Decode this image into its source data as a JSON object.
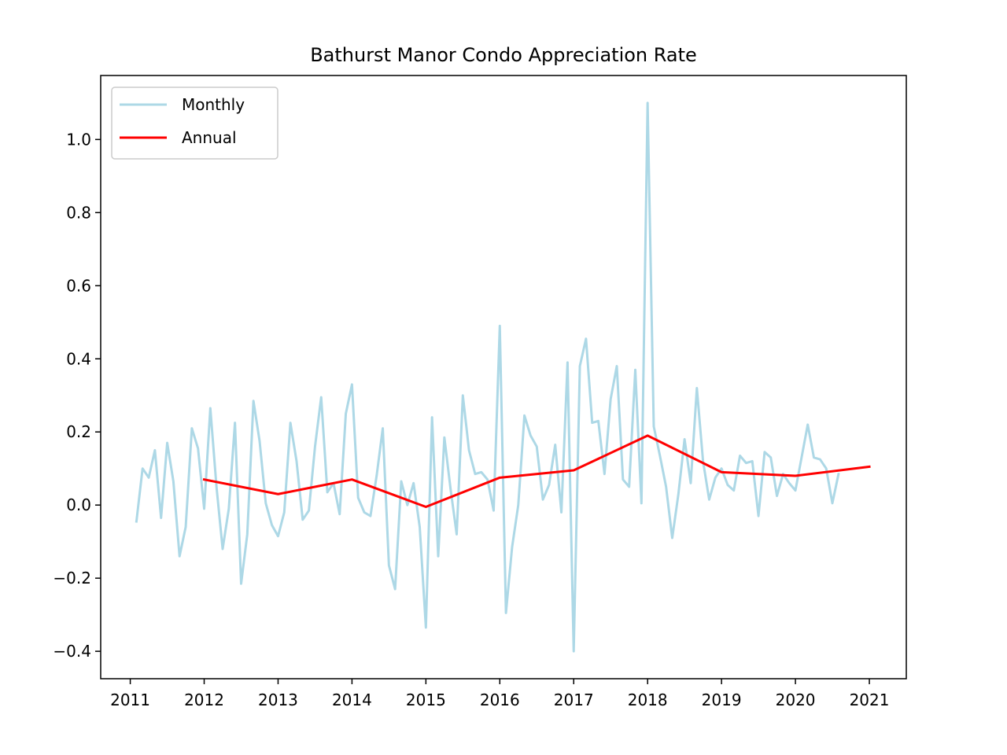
{
  "chart_data": {
    "type": "line",
    "title": "Bathurst Manor Condo Appreciation Rate",
    "xlabel": "",
    "ylabel": "",
    "xlim": [
      2010.6,
      2021.5
    ],
    "ylim": [
      -0.475,
      1.175
    ],
    "x_ticks": [
      2011,
      2012,
      2013,
      2014,
      2015,
      2016,
      2017,
      2018,
      2019,
      2020,
      2021
    ],
    "x_tick_labels": [
      "2011",
      "2012",
      "2013",
      "2014",
      "2015",
      "2016",
      "2017",
      "2018",
      "2019",
      "2020",
      "2021"
    ],
    "y_ticks": [
      -0.4,
      -0.2,
      0.0,
      0.2,
      0.4,
      0.6,
      0.8,
      1.0
    ],
    "y_tick_labels": [
      "−0.4",
      "−0.2",
      "0.0",
      "0.2",
      "0.4",
      "0.6",
      "0.8",
      "1.0"
    ],
    "grid": false,
    "legend": {
      "position": "upper-left"
    },
    "series": [
      {
        "name": "Monthly",
        "color": "#add8e6",
        "x_start": 2011.08333,
        "x_step": 0.08333,
        "values": [
          -0.045,
          0.1,
          0.075,
          0.15,
          -0.035,
          0.17,
          0.065,
          -0.14,
          -0.06,
          0.21,
          0.155,
          -0.01,
          0.265,
          0.05,
          -0.12,
          -0.01,
          0.225,
          -0.215,
          -0.08,
          0.285,
          0.175,
          0.005,
          -0.055,
          -0.085,
          -0.02,
          0.225,
          0.12,
          -0.04,
          -0.015,
          0.16,
          0.295,
          0.035,
          0.06,
          -0.025,
          0.25,
          0.33,
          0.02,
          -0.02,
          -0.03,
          0.08,
          0.21,
          -0.165,
          -0.23,
          0.065,
          0.0,
          0.06,
          -0.06,
          -0.335,
          0.24,
          -0.14,
          0.185,
          0.045,
          -0.08,
          0.3,
          0.15,
          0.085,
          0.09,
          0.07,
          -0.015,
          0.49,
          -0.295,
          -0.115,
          0.0,
          0.245,
          0.19,
          0.16,
          0.015,
          0.055,
          0.165,
          -0.02,
          0.39,
          -0.4,
          0.38,
          0.455,
          0.225,
          0.23,
          0.085,
          0.29,
          0.38,
          0.07,
          0.05,
          0.37,
          0.005,
          1.1,
          0.215,
          0.135,
          0.05,
          -0.09,
          0.03,
          0.18,
          0.06,
          0.32,
          0.12,
          0.015,
          0.075,
          0.1,
          0.055,
          0.04,
          0.135,
          0.115,
          0.12,
          -0.03,
          0.145,
          0.13,
          0.025,
          0.085,
          0.06,
          0.04,
          0.13,
          0.22,
          0.13,
          0.125,
          0.1,
          0.005,
          0.085
        ]
      },
      {
        "name": "Annual",
        "color": "#ff0000",
        "x": [
          2012,
          2013,
          2014,
          2015,
          2016,
          2017,
          2018,
          2019,
          2020,
          2021
        ],
        "values": [
          0.07,
          0.03,
          0.07,
          -0.005,
          0.075,
          0.095,
          0.19,
          0.09,
          0.08,
          0.105
        ]
      }
    ]
  }
}
